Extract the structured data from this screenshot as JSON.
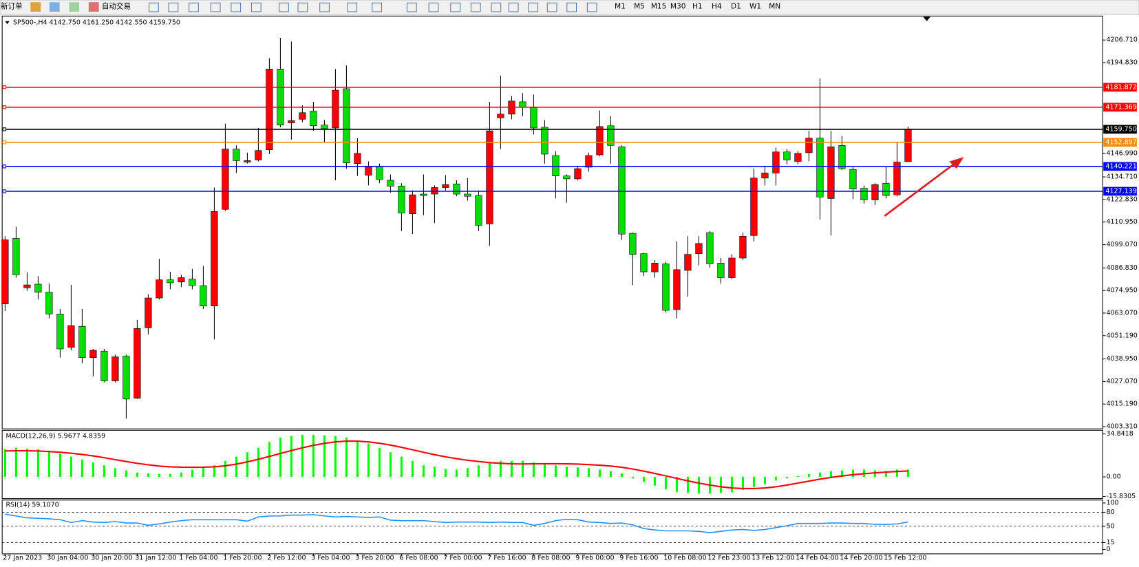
{
  "toolbar": {
    "new_order": "新订单",
    "auto_trade": "自动交易",
    "periods": [
      "M1",
      "M5",
      "M15",
      "M30",
      "H1",
      "H4",
      "D1",
      "W1",
      "MN"
    ]
  },
  "chart_data": [
    {
      "type": "candlestick",
      "title": "SP500-,H4  4142.750 4161.250 4142.550 4159.750",
      "up_color": "#ff0000",
      "down_color": "#00e000",
      "ylim": [
        4002.16,
        4218.56
      ],
      "yticks": [
        {
          "value": 4206.71,
          "label": "4206.710"
        },
        {
          "value": 4194.83,
          "label": "4194.830"
        },
        {
          "value": 4146.99,
          "label": "4146.990"
        },
        {
          "value": 4134.71,
          "label": "4134.710"
        },
        {
          "value": 4122.83,
          "label": "4122.830"
        },
        {
          "value": 4110.95,
          "label": "4110.950"
        },
        {
          "value": 4099.07,
          "label": "4099.070"
        },
        {
          "value": 4086.83,
          "label": "4086.830"
        },
        {
          "value": 4074.95,
          "label": "4074.950"
        },
        {
          "value": 4063.07,
          "label": "4063.070"
        },
        {
          "value": 4051.19,
          "label": "4051.190"
        },
        {
          "value": 4038.95,
          "label": "4038.950"
        },
        {
          "value": 4027.07,
          "label": "4027.070"
        },
        {
          "value": 4015.19,
          "label": "4015.190"
        },
        {
          "value": 4003.31,
          "label": "4003.310"
        }
      ],
      "levels": [
        {
          "value": 4181.872,
          "color": "#ff0000"
        },
        {
          "value": 4171.369,
          "color": "#ff0000"
        },
        {
          "value": 4159.75,
          "label": "4159.750",
          "color": "#000000"
        },
        {
          "value": 4152.897,
          "color": "#ff8c00"
        },
        {
          "value": 4140.221,
          "color": "#0000ff"
        },
        {
          "value": 4127.139,
          "color": "#0000ff"
        }
      ],
      "categories": [
        "27 Jan 2023",
        null,
        null,
        null,
        "30 Jan 04:00",
        null,
        null,
        null,
        "30 Jan 20:00",
        null,
        null,
        null,
        "31 Jan 12:00",
        null,
        null,
        null,
        "1 Feb 04:00",
        null,
        null,
        null,
        "1 Feb 20:00",
        null,
        null,
        null,
        "2 Feb 12:00",
        null,
        null,
        null,
        "3 Feb 04:00",
        null,
        null,
        null,
        "3 Feb 20:00",
        null,
        null,
        null,
        "6 Feb 08:00",
        null,
        null,
        null,
        "7 Feb 00:00",
        null,
        null,
        null,
        "7 Feb 16:00",
        null,
        null,
        null,
        "8 Feb 08:00",
        null,
        null,
        null,
        "9 Feb 00:00",
        null,
        null,
        null,
        "9 Feb 16:00",
        null,
        null,
        null,
        "10 Feb 08:00",
        null,
        null,
        null,
        "12 Feb 23:00",
        null,
        null,
        null,
        "13 Feb 12:00",
        null,
        null,
        null,
        "14 Feb 04:00",
        null,
        null,
        null,
        "14 Feb 20:00",
        null,
        null,
        null,
        "15 Feb 12:00",
        null,
        null
      ],
      "ohlc": [
        [
          4067.94,
          4103.49,
          4064.12,
          4101.58
        ],
        [
          4102.35,
          4108.46,
          4081.7,
          4083.23
        ],
        [
          4076.35,
          4084.38,
          4074.82,
          4077.88
        ],
        [
          4078.26,
          4082.47,
          4070.23,
          4074.06
        ],
        [
          4074.06,
          4078.64,
          4060.29,
          4062.59
        ],
        [
          4062.59,
          4065.26,
          4039.65,
          4044.24
        ],
        [
          4045.0,
          4077.88,
          4043.47,
          4056.47
        ],
        [
          4056.09,
          4065.26,
          4036.59,
          4039.65
        ],
        [
          4039.65,
          4044.24,
          4029.71,
          4043.47
        ],
        [
          4043.09,
          4044.24,
          4026.65,
          4027.41
        ],
        [
          4027.41,
          4041.18,
          4026.65,
          4040.03
        ],
        [
          4040.41,
          4041.18,
          4007.54,
          4017.86
        ],
        [
          4018.24,
          4059.53,
          4017.86,
          4054.94
        ],
        [
          4055.32,
          4072.91,
          4051.88,
          4071.0
        ],
        [
          4071.0,
          4091.64,
          4070.23,
          4080.55
        ],
        [
          4080.55,
          4084.76,
          4075.58,
          4079.03
        ],
        [
          4079.41,
          4083.23,
          4076.73,
          4081.7
        ],
        [
          4080.94,
          4086.29,
          4075.58,
          4077.5
        ],
        [
          4077.5,
          4087.82,
          4065.26,
          4066.79
        ],
        [
          4066.79,
          4129.11,
          4049.21,
          4116.49
        ],
        [
          4117.64,
          4162.75,
          4116.87,
          4149.37
        ],
        [
          4149.37,
          4151.28,
          4136.75,
          4143.25
        ],
        [
          4142.49,
          4147.46,
          4141.72,
          4143.25
        ],
        [
          4143.63,
          4160.46,
          4142.87,
          4148.6
        ],
        [
          4148.99,
          4197.16,
          4146.69,
          4191.42
        ],
        [
          4191.42,
          4207.86,
          4160.84,
          4161.98
        ],
        [
          4163.13,
          4205.95,
          4154.34,
          4164.28
        ],
        [
          4165.04,
          4172.31,
          4163.51,
          4168.48
        ],
        [
          4169.25,
          4174.22,
          4158.93,
          4161.6
        ],
        [
          4161.98,
          4164.66,
          4153.19,
          4160.07
        ],
        [
          4160.46,
          4191.42,
          4132.93,
          4180.33
        ],
        [
          4181.1,
          4193.33,
          4139.05,
          4142.1
        ],
        [
          4141.72,
          4155.1,
          4135.22,
          4147.07
        ],
        [
          4135.61,
          4142.87,
          4130.25,
          4140.19
        ],
        [
          4140.19,
          4141.72,
          4131.4,
          4133.31
        ],
        [
          4132.93,
          4135.99,
          4126.43,
          4129.87
        ],
        [
          4129.87,
          4131.4,
          4106.17,
          4115.73
        ],
        [
          4115.34,
          4127.58,
          4104.64,
          4125.28
        ],
        [
          4125.67,
          4135.99,
          4114.58,
          4124.9
        ],
        [
          4125.67,
          4130.25,
          4110.37,
          4129.11
        ],
        [
          4129.11,
          4135.61,
          4127.58,
          4130.64
        ],
        [
          4131.02,
          4132.93,
          4124.52,
          4125.67
        ],
        [
          4125.67,
          4134.08,
          4122.23,
          4124.52
        ],
        [
          4124.9,
          4127.58,
          4106.17,
          4109.23
        ],
        [
          4109.99,
          4174.22,
          4098.52,
          4158.93
        ],
        [
          4165.81,
          4187.98,
          4149.37,
          4167.72
        ],
        [
          4167.72,
          4177.28,
          4165.04,
          4174.6
        ],
        [
          4174.22,
          4178.81,
          4166.57,
          4171.54
        ],
        [
          4171.16,
          4178.04,
          4157.01,
          4160.46
        ],
        [
          4160.84,
          4164.66,
          4141.72,
          4146.69
        ],
        [
          4145.93,
          4148.22,
          4123.37,
          4135.22
        ],
        [
          4135.22,
          4135.99,
          4121.08,
          4133.69
        ],
        [
          4133.69,
          4140.58,
          4132.93,
          4139.05
        ],
        [
          4139.81,
          4147.46,
          4137.52,
          4145.93
        ],
        [
          4146.31,
          4169.63,
          4145.55,
          4161.22
        ],
        [
          4161.6,
          4166.57,
          4141.72,
          4151.28
        ],
        [
          4150.52,
          4151.28,
          4101.58,
          4104.64
        ],
        [
          4105.02,
          4105.4,
          4077.88,
          4093.93
        ],
        [
          4094.32,
          4094.7,
          4082.47,
          4084.76
        ],
        [
          4084.76,
          4090.88,
          4081.7,
          4089.35
        ],
        [
          4088.97,
          4090.11,
          4063.35,
          4064.5
        ],
        [
          4064.88,
          4100.82,
          4060.29,
          4085.91
        ],
        [
          4085.52,
          4103.49,
          4071.76,
          4093.93
        ],
        [
          4094.32,
          4103.49,
          4088.2,
          4099.67
        ],
        [
          4105.4,
          4106.17,
          4087.05,
          4088.97
        ],
        [
          4089.35,
          4092.02,
          4078.64,
          4081.7
        ],
        [
          4081.7,
          4093.93,
          4080.94,
          4092.02
        ],
        [
          4092.02,
          4105.4,
          4090.88,
          4103.49
        ],
        [
          4103.87,
          4139.05,
          4100.82,
          4134.08
        ],
        [
          4134.08,
          4140.58,
          4130.25,
          4136.75
        ],
        [
          4136.75,
          4150.13,
          4130.25,
          4147.84
        ],
        [
          4147.84,
          4149.37,
          4141.34,
          4143.63
        ],
        [
          4142.87,
          4148.22,
          4141.34,
          4147.07
        ],
        [
          4147.46,
          4158.93,
          4142.87,
          4155.1
        ],
        [
          4155.1,
          4186.45,
          4112.29,
          4124.14
        ],
        [
          4123.37,
          4158.93,
          4103.87,
          4150.52
        ],
        [
          4151.28,
          4156.25,
          4138.28,
          4139.05
        ],
        [
          4138.66,
          4139.81,
          4122.99,
          4128.34
        ],
        [
          4128.72,
          4130.25,
          4120.7,
          4122.61
        ],
        [
          4122.61,
          4131.4,
          4119.93,
          4130.64
        ],
        [
          4131.4,
          4139.81,
          4123.37,
          4124.9
        ],
        [
          4125.28,
          4152.81,
          4124.52,
          4142.49
        ],
        [
          4142.75,
          4161.25,
          4142.55,
          4159.75
        ]
      ]
    },
    {
      "type": "macd",
      "title": "MACD(12,26,9) 5.9677 4.8359",
      "ylim": [
        -15.8305,
        34.8418
      ],
      "yticks": [
        34.8418,
        {
          "value": 0,
          "label": "0.00"
        },
        -15.8305
      ],
      "histogram": {
        "color": "#00ff00",
        "values": [
          22.4,
          23.6,
          23.0,
          22.4,
          21.2,
          18.8,
          16.5,
          14.1,
          11.8,
          9.4,
          7.1,
          5.3,
          3.5,
          2.9,
          2.4,
          2.4,
          3.5,
          5.9,
          8.2,
          9.4,
          13.0,
          16.5,
          20.0,
          23.6,
          28.3,
          31.8,
          33.0,
          34.2,
          34.2,
          33.6,
          33.0,
          31.8,
          29.5,
          27.1,
          23.6,
          20.0,
          16.5,
          13.0,
          9.4,
          8.2,
          6.5,
          5.9,
          7.1,
          9.4,
          11.8,
          13.0,
          13.0,
          13.0,
          11.8,
          10.6,
          9.4,
          8.2,
          7.7,
          7.1,
          5.9,
          4.7,
          2.9,
          -1.2,
          -4.1,
          -7.1,
          -10.0,
          -12.4,
          -13.0,
          -13.5,
          -13.5,
          -13.0,
          -12.4,
          -10.6,
          -8.2,
          -5.9,
          -2.9,
          -1.2,
          0.6,
          2.4,
          3.5,
          4.7,
          5.3,
          5.9,
          5.9,
          5.3,
          4.7,
          5.9,
          5.9677
        ]
      },
      "signal": {
        "color": "#ff0000",
        "values": [
          21.0,
          21.2,
          21.2,
          21.0,
          20.6,
          20.0,
          19.2,
          18.2,
          17.0,
          15.6,
          14.0,
          12.5,
          11.0,
          9.8,
          8.8,
          8.2,
          7.9,
          7.8,
          7.9,
          8.2,
          9.0,
          10.4,
          12.2,
          14.3,
          16.6,
          19.0,
          21.4,
          23.6,
          25.6,
          27.2,
          28.4,
          29.0,
          29.0,
          28.4,
          27.3,
          25.8,
          24.0,
          22.0,
          20.0,
          18.0,
          16.3,
          14.8,
          13.5,
          12.5,
          11.6,
          11.0,
          10.6,
          10.5,
          10.6,
          10.7,
          10.7,
          10.6,
          10.4,
          10.0,
          9.5,
          8.8,
          7.8,
          6.4,
          4.7,
          2.8,
          0.8,
          -1.2,
          -3.2,
          -5.0,
          -6.6,
          -8.0,
          -9.0,
          -9.4,
          -9.4,
          -9.0,
          -8.0,
          -6.6,
          -5.0,
          -3.4,
          -1.8,
          -0.4,
          0.8,
          1.8,
          2.6,
          3.3,
          3.9,
          4.4,
          4.8359
        ]
      }
    },
    {
      "type": "rsi",
      "title": "RSI(14) 59.1070",
      "ylim": [
        0,
        100
      ],
      "yticks": [
        100,
        80,
        50,
        15,
        0
      ],
      "levels": [
        80,
        50,
        15
      ],
      "color": "#1e90ff",
      "values": [
        76,
        72,
        68,
        67,
        66,
        64,
        58,
        62,
        59,
        58,
        60,
        57,
        57,
        52,
        55,
        59,
        62,
        64,
        64,
        64,
        64,
        64,
        61,
        70,
        72,
        72,
        74,
        74,
        75,
        72,
        70,
        71,
        70,
        69,
        70,
        63,
        62,
        62,
        62,
        60,
        58,
        59,
        59,
        59,
        58,
        59,
        58,
        58,
        52,
        56,
        62,
        65,
        64,
        59,
        58,
        56,
        57,
        53,
        45,
        42,
        40,
        40,
        40,
        39,
        36,
        39,
        42,
        43,
        41,
        43,
        47,
        51,
        56,
        56,
        56,
        57,
        57,
        56,
        56,
        54,
        54,
        55,
        59.107
      ]
    }
  ]
}
